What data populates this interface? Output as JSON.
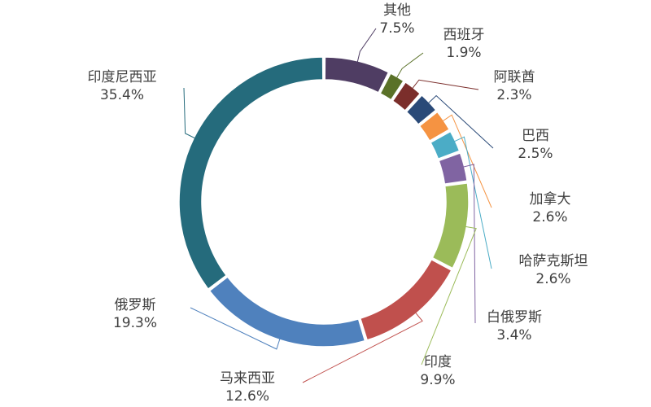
{
  "chart_data": {
    "type": "pie",
    "variant": "donut",
    "start": "top-center",
    "direction": "clockwise",
    "legend": "none",
    "slices": [
      {
        "name": "其他",
        "value": 7.5,
        "label": "7.5%",
        "color": "#4f3d63"
      },
      {
        "name": "西班牙",
        "value": 1.9,
        "label": "1.9%",
        "color": "#5a7128"
      },
      {
        "name": "阿联酋",
        "value": 2.3,
        "label": "2.3%",
        "color": "#7b2e2b"
      },
      {
        "name": "巴西",
        "value": 2.5,
        "label": "2.5%",
        "color": "#2a4a78"
      },
      {
        "name": "加拿大",
        "value": 2.6,
        "label": "2.6%",
        "color": "#f59342"
      },
      {
        "name": "哈萨克斯坦",
        "value": 2.6,
        "label": "2.6%",
        "color": "#4bacc6"
      },
      {
        "name": "白俄罗斯",
        "value": 3.4,
        "label": "3.4%",
        "color": "#8064a2"
      },
      {
        "name": "印度",
        "value": 9.9,
        "label": "9.9%",
        "color": "#9bbb59"
      },
      {
        "name": "马来西亚",
        "value": 12.6,
        "label": "12.6%",
        "color": "#c0504d"
      },
      {
        "name": "俄罗斯",
        "value": 19.3,
        "label": "19.3%",
        "color": "#4f81bd"
      },
      {
        "name": "印度尼西亚",
        "value": 35.4,
        "label": "35.4%",
        "color": "#256b7c"
      }
    ]
  }
}
